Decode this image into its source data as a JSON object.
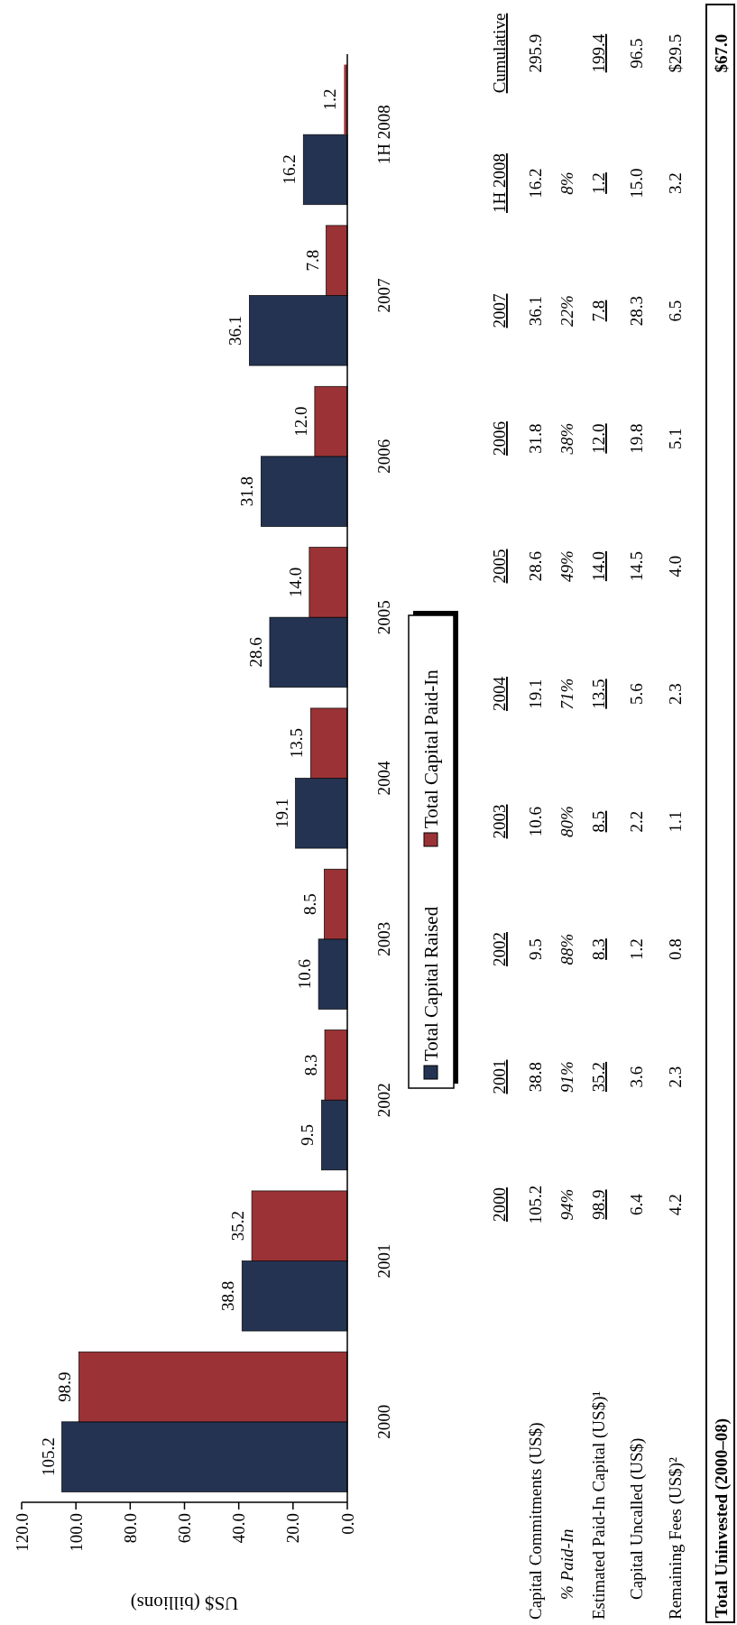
{
  "chart_data": {
    "type": "bar",
    "orientation": "horizontal",
    "categories": [
      "1H 2008",
      "2007",
      "2006",
      "2005",
      "2004",
      "2003",
      "2002",
      "2001",
      "2000"
    ],
    "series": [
      {
        "name": "Total Capital Raised",
        "color": "#243352",
        "values": [
          16.2,
          36.1,
          31.8,
          28.6,
          19.1,
          10.6,
          9.5,
          38.8,
          105.2
        ],
        "value_labels": [
          "16.2",
          "36.1",
          "31.8",
          "28.6",
          "19.1",
          "10.6",
          "9.5",
          "38.8",
          "105.2"
        ]
      },
      {
        "name": "Total Capital Paid-In",
        "color": "#9b3336",
        "values": [
          1.2,
          7.8,
          12.0,
          14.0,
          13.5,
          8.5,
          8.3,
          35.2,
          98.9
        ],
        "value_labels": [
          "1.2",
          "7.8",
          "12.0",
          "14.0",
          "13.5",
          "8.5",
          "8.3",
          "35.2",
          "98.9"
        ]
      }
    ],
    "xlabel": "US$ (billions)",
    "xlim": [
      120,
      0
    ],
    "xticks": [
      {
        "value": 120,
        "label": "120.0"
      },
      {
        "value": 100,
        "label": "100.0"
      },
      {
        "value": 80,
        "label": "80.0"
      },
      {
        "value": 60,
        "label": "60.0"
      },
      {
        "value": 40,
        "label": "40.0"
      },
      {
        "value": 20,
        "label": "20.0"
      },
      {
        "value": 0,
        "label": "0.0"
      }
    ],
    "legend": "right",
    "grid": false,
    "annotations": [
      "Cumulative",
      "Capital Commitments (US$)",
      "% Paid-In",
      "Estimated Paid-In Capital (US$)¹",
      "Capital Uncalled (US$)",
      "Remaining Fees (US$)²",
      "Total Uninvested (2000–08)",
      "$67.0",
      "295.9",
      "199.4",
      "96.5",
      "$29.5",
      "8%",
      "22%",
      "38%",
      "49%",
      "71%",
      "80%",
      "88%",
      "91%",
      "94%",
      "15.0",
      "28.3",
      "19.8",
      "14.5",
      "5.6",
      "2.2",
      "1.2",
      "3.6",
      "6.4",
      "3.2",
      "6.5",
      "5.1",
      "4.0",
      "2.3",
      "1.1",
      "0.8",
      "2.3",
      "4.2",
      "16.2",
      "36.1",
      "31.8",
      "28.6",
      "19.1",
      "10.6",
      "9.5",
      "38.8",
      "105.2",
      "1.2",
      "7.8",
      "12.0",
      "14.0",
      "13.5",
      "8.5",
      "8.3",
      "35.2",
      "98.9"
    ]
  }
}
